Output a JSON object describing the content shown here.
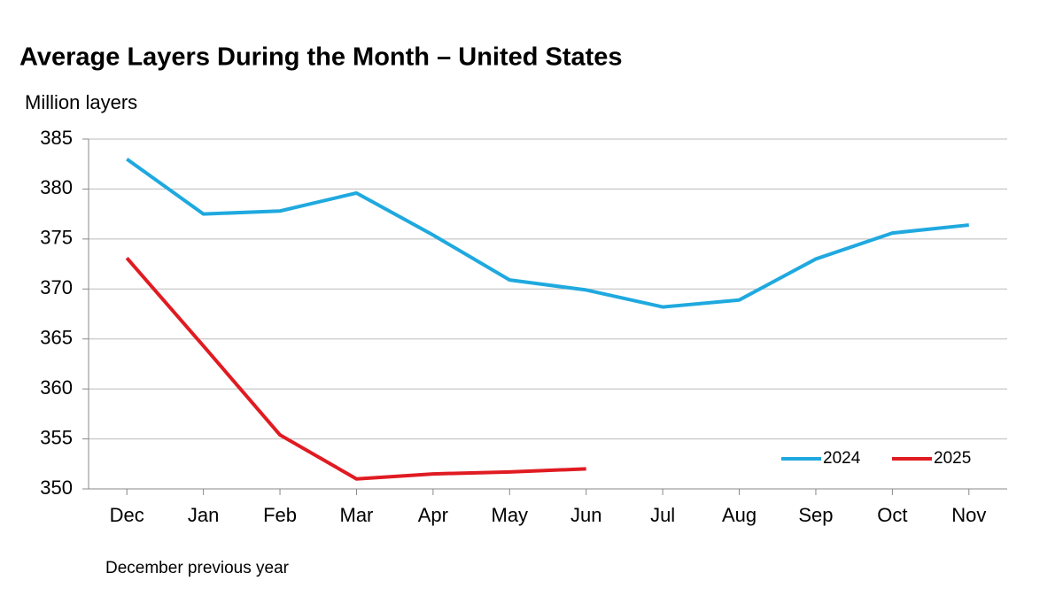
{
  "chart_data": {
    "type": "line",
    "title": "Average Layers During the Month – United States",
    "y_label": "Million layers",
    "footnote": "December previous year",
    "categories": [
      "Dec",
      "Jan",
      "Feb",
      "Mar",
      "Apr",
      "May",
      "Jun",
      "Jul",
      "Aug",
      "Sep",
      "Oct",
      "Nov"
    ],
    "series": [
      {
        "name": "2024",
        "color": "#1fa9df",
        "values": [
          383.0,
          377.5,
          377.8,
          379.6,
          375.4,
          370.9,
          369.9,
          368.2,
          368.9,
          373.0,
          375.6,
          376.4
        ]
      },
      {
        "name": "2025",
        "color": "#e01b22",
        "values": [
          373.1,
          364.3,
          355.4,
          351.0,
          351.5,
          351.7,
          352.0,
          null,
          null,
          null,
          null,
          null
        ]
      }
    ],
    "ylim": [
      350,
      385
    ],
    "yticks": [
      350,
      355,
      360,
      365,
      370,
      375,
      380,
      385
    ],
    "grid": true,
    "legend": "lower right"
  }
}
